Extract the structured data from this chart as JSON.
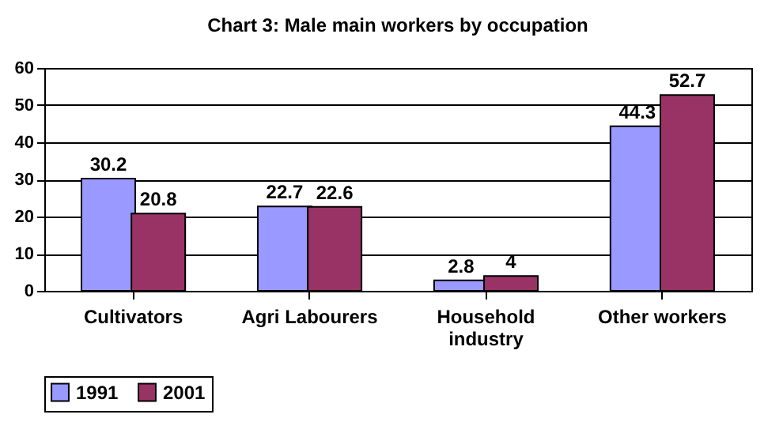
{
  "chart_data": {
    "type": "bar",
    "title": "Chart 3: Male main workers by occupation",
    "categories": [
      "Cultivators",
      "Agri Labourers",
      "Household industry",
      "Other workers"
    ],
    "series": [
      {
        "name": "1991",
        "color": "#9999ff",
        "values": [
          30.2,
          22.7,
          2.8,
          44.3
        ]
      },
      {
        "name": "2001",
        "color": "#993366",
        "values": [
          20.8,
          22.6,
          4,
          52.7
        ]
      }
    ],
    "ylim": [
      0,
      60
    ],
    "yticks": [
      0,
      10,
      20,
      30,
      40,
      50,
      60
    ],
    "grid": "y",
    "legend": "bottom",
    "data_labels": true
  }
}
